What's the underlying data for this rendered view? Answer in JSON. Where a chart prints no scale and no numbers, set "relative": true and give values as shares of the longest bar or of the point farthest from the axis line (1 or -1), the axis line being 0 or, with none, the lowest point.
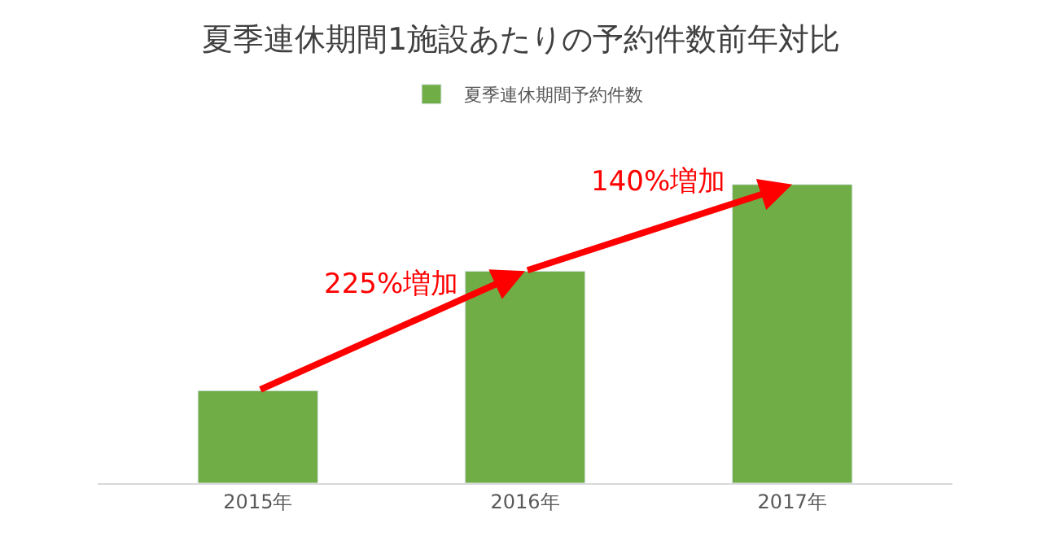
{
  "chart_data": {
    "type": "bar",
    "title": "夏季連休期間1施設あたりの予約件数前年対比",
    "categories": [
      "2015年",
      "2016年",
      "2017年"
    ],
    "series": [
      {
        "name": "夏季連休期間予約件数",
        "color": "#70ad47",
        "values": [
          0.31,
          0.71,
          1
        ]
      }
    ],
    "relative": true,
    "legend": "top",
    "annotations": [
      "225%増加",
      "140%増加"
    ]
  }
}
